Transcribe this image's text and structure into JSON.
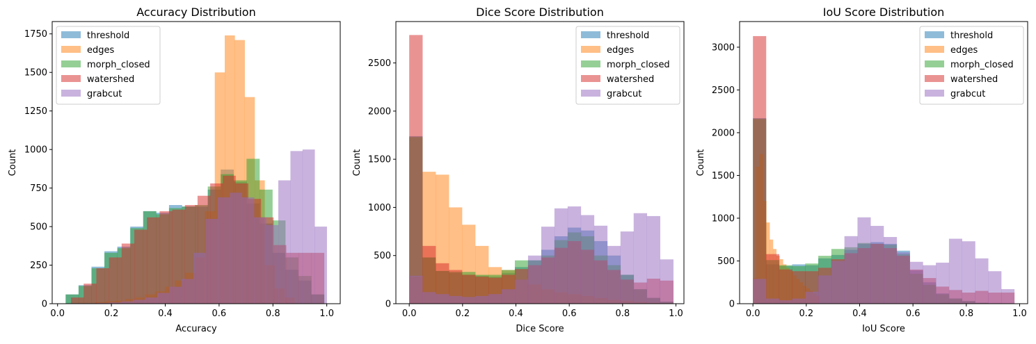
{
  "chart_data": [
    {
      "type": "histogram",
      "title": "Accuracy Distribution",
      "xlabel": "Accuracy",
      "ylabel": "Count",
      "xlim": [
        -0.02,
        1.05
      ],
      "ylim": [
        0,
        1830
      ],
      "xticks": [
        0.0,
        0.2,
        0.4,
        0.6,
        0.8,
        1.0
      ],
      "xtick_labels": [
        "0.0",
        "0.2",
        "0.4",
        "0.6",
        "0.8",
        "1.0"
      ],
      "yticks": [
        0,
        250,
        500,
        750,
        1000,
        1250,
        1500,
        1750
      ],
      "ytick_labels": [
        "0",
        "250",
        "500",
        "750",
        "1000",
        "1250",
        "1500",
        "1750"
      ],
      "legend_position": "upper-left",
      "series": [
        {
          "name": "threshold",
          "color": "#1f77b4",
          "edges": [
            0.03,
            0.078,
            0.126,
            0.174,
            0.222,
            0.27,
            0.318,
            0.366,
            0.414,
            0.462,
            0.51,
            0.558,
            0.606,
            0.654,
            0.702,
            0.75,
            0.798,
            0.846,
            0.894,
            0.942,
            0.99
          ],
          "values": [
            60,
            120,
            240,
            340,
            370,
            500,
            600,
            590,
            640,
            630,
            630,
            740,
            870,
            790,
            650,
            520,
            330,
            220,
            150,
            60
          ]
        },
        {
          "name": "edges",
          "color": "#ff7f0e",
          "edges": [
            0.14,
            0.177,
            0.214,
            0.251,
            0.288,
            0.325,
            0.362,
            0.399,
            0.436,
            0.473,
            0.51,
            0.547,
            0.584,
            0.621,
            0.658,
            0.695,
            0.732,
            0.769,
            0.806,
            0.843,
            0.88
          ],
          "values": [
            10,
            15,
            20,
            30,
            40,
            60,
            80,
            110,
            150,
            200,
            300,
            600,
            1500,
            1740,
            1710,
            1340,
            800,
            250,
            100,
            40
          ]
        },
        {
          "name": "morph_closed",
          "color": "#2ca02c",
          "edges": [
            0.03,
            0.078,
            0.126,
            0.174,
            0.222,
            0.27,
            0.318,
            0.366,
            0.414,
            0.462,
            0.51,
            0.558,
            0.606,
            0.654,
            0.702,
            0.75,
            0.798,
            0.846,
            0.894,
            0.942,
            0.99
          ],
          "values": [
            60,
            115,
            230,
            330,
            360,
            490,
            600,
            580,
            620,
            630,
            640,
            760,
            840,
            800,
            940,
            740,
            540,
            300,
            180,
            60
          ]
        },
        {
          "name": "watershed",
          "color": "#d62728",
          "edges": [
            0.05,
            0.097,
            0.144,
            0.191,
            0.238,
            0.285,
            0.332,
            0.379,
            0.426,
            0.473,
            0.52,
            0.567,
            0.614,
            0.661,
            0.708,
            0.755,
            0.802,
            0.849,
            0.896,
            0.943,
            0.99
          ],
          "values": [
            40,
            130,
            230,
            300,
            390,
            480,
            560,
            600,
            610,
            640,
            700,
            780,
            830,
            780,
            680,
            560,
            380,
            330,
            330,
            330
          ]
        },
        {
          "name": "grabcut",
          "color": "#9467bd",
          "edges": [
            0.1,
            0.145,
            0.19,
            0.235,
            0.28,
            0.325,
            0.37,
            0.415,
            0.46,
            0.505,
            0.55,
            0.595,
            0.64,
            0.685,
            0.73,
            0.775,
            0.82,
            0.865,
            0.91,
            0.955,
            1.0
          ],
          "values": [
            2,
            5,
            8,
            15,
            25,
            40,
            70,
            110,
            160,
            330,
            550,
            690,
            720,
            690,
            560,
            510,
            800,
            990,
            1000,
            500
          ]
        }
      ]
    },
    {
      "type": "histogram",
      "title": "Dice Score Distribution",
      "xlabel": "Dice Score",
      "ylabel": "Count",
      "xlim": [
        -0.05,
        1.03
      ],
      "ylim": [
        0,
        2930
      ],
      "xticks": [
        0.0,
        0.2,
        0.4,
        0.6,
        0.8,
        1.0
      ],
      "xtick_labels": [
        "0.0",
        "0.2",
        "0.4",
        "0.6",
        "0.8",
        "1.0"
      ],
      "yticks": [
        0,
        500,
        1000,
        1500,
        2000,
        2500
      ],
      "ytick_labels": [
        "0",
        "500",
        "1000",
        "1500",
        "2000",
        "2500"
      ],
      "legend_position": "upper-right",
      "series": [
        {
          "name": "threshold",
          "color": "#1f77b4",
          "edges": [
            0.0,
            0.0495,
            0.099,
            0.1485,
            0.198,
            0.2475,
            0.297,
            0.3465,
            0.396,
            0.4455,
            0.495,
            0.5445,
            0.594,
            0.6435,
            0.693,
            0.7425,
            0.792,
            0.8415,
            0.891,
            0.9405,
            0.99
          ],
          "values": [
            1740,
            480,
            340,
            320,
            300,
            290,
            280,
            320,
            380,
            450,
            560,
            700,
            790,
            760,
            650,
            500,
            300,
            150,
            60,
            20
          ]
        },
        {
          "name": "edges",
          "color": "#ff7f0e",
          "edges": [
            0.0,
            0.0495,
            0.099,
            0.1485,
            0.198,
            0.2475,
            0.297,
            0.3465,
            0.396,
            0.4455,
            0.495,
            0.5445,
            0.594,
            0.6435,
            0.693,
            0.7425,
            0.792,
            0.8415,
            0.891,
            0.9405,
            0.99
          ],
          "values": [
            280,
            1370,
            1340,
            1000,
            820,
            600,
            380,
            350,
            250,
            200,
            150,
            120,
            100,
            80,
            60,
            40,
            30,
            20,
            10,
            5
          ]
        },
        {
          "name": "morph_closed",
          "color": "#2ca02c",
          "edges": [
            0.0,
            0.0495,
            0.099,
            0.1485,
            0.198,
            0.2475,
            0.297,
            0.3465,
            0.396,
            0.4455,
            0.495,
            0.5445,
            0.594,
            0.6435,
            0.693,
            0.7425,
            0.792,
            0.8415,
            0.891,
            0.9405,
            0.99
          ],
          "values": [
            1730,
            480,
            340,
            330,
            330,
            300,
            300,
            350,
            450,
            450,
            500,
            660,
            740,
            700,
            500,
            400,
            300,
            150,
            60,
            20
          ]
        },
        {
          "name": "watershed",
          "color": "#d62728",
          "edges": [
            0.0,
            0.0495,
            0.099,
            0.1485,
            0.198,
            0.2475,
            0.297,
            0.3465,
            0.396,
            0.4455,
            0.495,
            0.5445,
            0.594,
            0.6435,
            0.693,
            0.7425,
            0.792,
            0.8415,
            0.891,
            0.9405,
            0.99
          ],
          "values": [
            2790,
            600,
            420,
            350,
            300,
            280,
            270,
            300,
            360,
            400,
            480,
            580,
            650,
            560,
            450,
            350,
            250,
            220,
            260,
            240
          ]
        },
        {
          "name": "grabcut",
          "color": "#9467bd",
          "edges": [
            0.0,
            0.0495,
            0.099,
            0.1485,
            0.198,
            0.2475,
            0.297,
            0.3465,
            0.396,
            0.4455,
            0.495,
            0.5445,
            0.594,
            0.6435,
            0.693,
            0.7425,
            0.792,
            0.8415,
            0.891,
            0.9405,
            0.99
          ],
          "values": [
            290,
            120,
            100,
            80,
            70,
            80,
            100,
            150,
            250,
            500,
            800,
            990,
            1010,
            920,
            810,
            600,
            750,
            940,
            910,
            460
          ]
        }
      ]
    },
    {
      "type": "histogram",
      "title": "IoU Score Distribution",
      "xlabel": "IoU Score",
      "ylabel": "Count",
      "xlim": [
        -0.05,
        1.03
      ],
      "ylim": [
        0,
        3300
      ],
      "xticks": [
        0.0,
        0.2,
        0.4,
        0.6,
        0.8,
        1.0
      ],
      "xtick_labels": [
        "0.0",
        "0.2",
        "0.4",
        "0.6",
        "0.8",
        "1.0"
      ],
      "yticks": [
        0,
        500,
        1000,
        1500,
        2000,
        2500,
        3000
      ],
      "ytick_labels": [
        "0",
        "500",
        "1000",
        "1500",
        "2000",
        "2500",
        "3000"
      ],
      "legend_position": "upper-right",
      "series": [
        {
          "name": "threshold",
          "color": "#1f77b4",
          "edges": [
            0.0,
            0.049,
            0.098,
            0.147,
            0.196,
            0.245,
            0.294,
            0.343,
            0.392,
            0.441,
            0.49,
            0.539,
            0.588,
            0.637,
            0.686,
            0.735,
            0.784,
            0.833,
            0.882,
            0.931,
            0.98
          ],
          "values": [
            2170,
            460,
            440,
            460,
            450,
            530,
            570,
            630,
            700,
            720,
            700,
            620,
            390,
            250,
            120,
            60,
            30,
            10,
            5,
            2
          ]
        },
        {
          "name": "edges",
          "color": "#ff7f0e",
          "edges": [
            0.0,
            0.0125,
            0.025,
            0.0375,
            0.05,
            0.0625,
            0.075,
            0.0875,
            0.1,
            0.1125,
            0.125,
            0.1375,
            0.15,
            0.1625,
            0.175,
            0.1875,
            0.2,
            0.2125,
            0.225,
            0.2375,
            0.25
          ],
          "values": [
            300,
            1600,
            1750,
            1200,
            950,
            750,
            640,
            560,
            520,
            460,
            420,
            380,
            330,
            290,
            250,
            210,
            180,
            150,
            120,
            90
          ]
        },
        {
          "name": "morph_closed",
          "color": "#2ca02c",
          "edges": [
            0.0,
            0.049,
            0.098,
            0.147,
            0.196,
            0.245,
            0.294,
            0.343,
            0.392,
            0.441,
            0.49,
            0.539,
            0.588,
            0.637,
            0.686,
            0.735,
            0.784,
            0.833,
            0.882,
            0.931,
            0.98
          ],
          "values": [
            2160,
            510,
            450,
            440,
            470,
            560,
            640,
            660,
            710,
            700,
            690,
            580,
            350,
            220,
            110,
            60,
            30,
            10,
            5,
            2
          ]
        },
        {
          "name": "watershed",
          "color": "#d62728",
          "edges": [
            0.0,
            0.049,
            0.098,
            0.147,
            0.196,
            0.245,
            0.294,
            0.343,
            0.392,
            0.441,
            0.49,
            0.539,
            0.588,
            0.637,
            0.686,
            0.735,
            0.784,
            0.833,
            0.882,
            0.931,
            0.98
          ],
          "values": [
            3130,
            580,
            400,
            380,
            380,
            420,
            520,
            590,
            650,
            700,
            650,
            560,
            400,
            300,
            200,
            160,
            130,
            150,
            130,
            130
          ]
        },
        {
          "name": "grabcut",
          "color": "#9467bd",
          "edges": [
            0.0,
            0.049,
            0.098,
            0.147,
            0.196,
            0.245,
            0.294,
            0.343,
            0.392,
            0.441,
            0.49,
            0.539,
            0.588,
            0.637,
            0.686,
            0.735,
            0.784,
            0.833,
            0.882,
            0.931,
            0.98
          ],
          "values": [
            290,
            60,
            40,
            60,
            140,
            330,
            500,
            790,
            1010,
            910,
            780,
            600,
            490,
            450,
            480,
            760,
            730,
            530,
            380,
            170
          ]
        }
      ]
    }
  ]
}
